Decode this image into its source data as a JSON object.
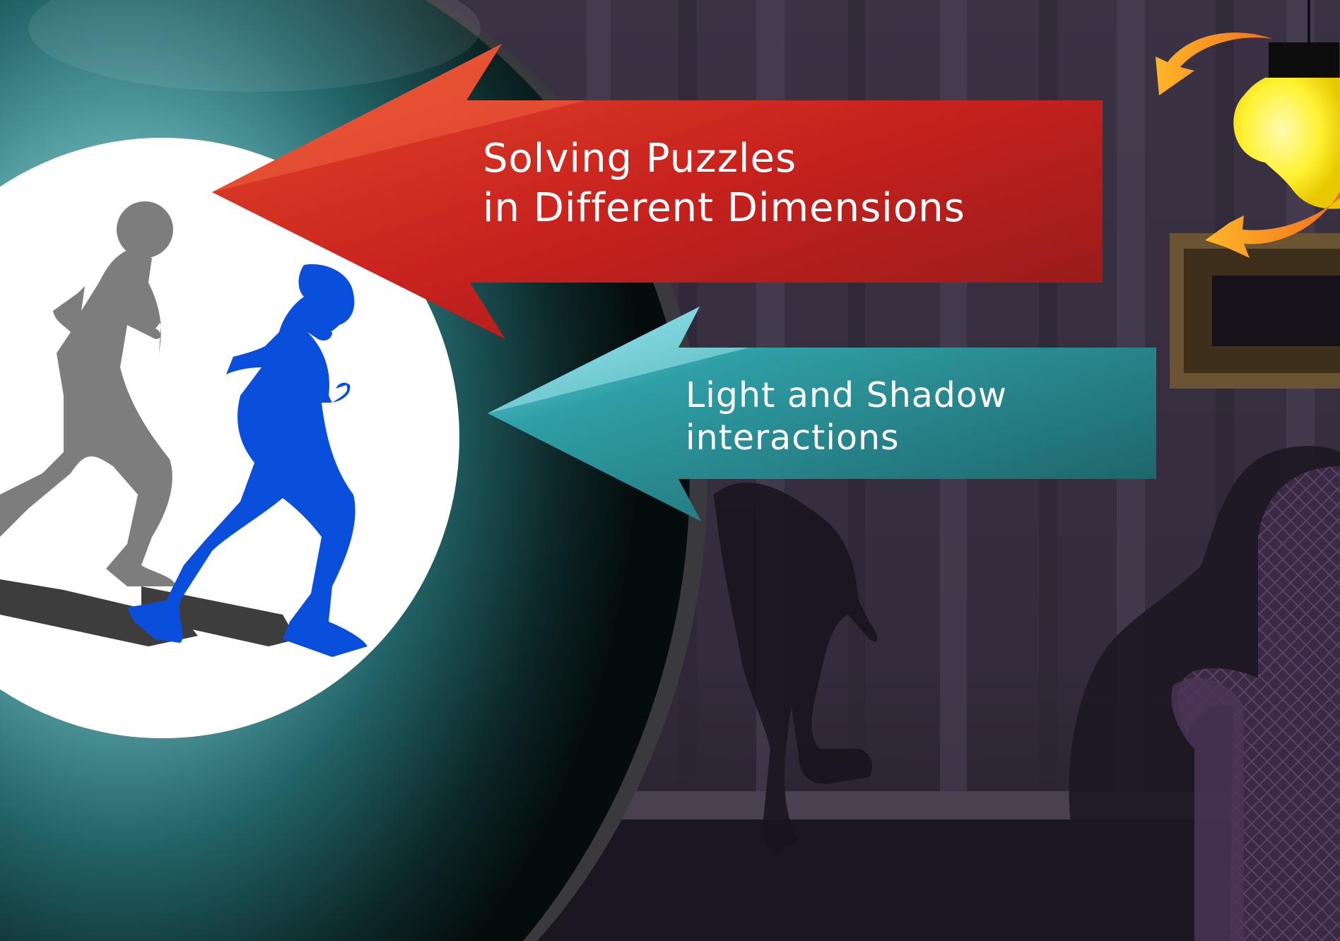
{
  "callouts": {
    "puzzles": {
      "line1": "Solving Puzzles",
      "line2": "in Different Dimensions",
      "color": "#c9241f"
    },
    "light_shadow": {
      "line1": "Light and Shadow",
      "line2": "interactions",
      "color": "#2f9aa0"
    }
  },
  "colors": {
    "wall": "#3a3142",
    "wall_stripe": "#4a4153",
    "floor": "#1b1720",
    "globe_dark": "#0b1a1a",
    "globe_teal": "#2a7c80",
    "spotlight": "#ffffff",
    "runner_front": "#0a4fdc",
    "runner_back": "#7d7d7d",
    "bulb": "#ffee22",
    "rotate_arrows": "#f28a1e"
  },
  "icons": {
    "runner_front": "runner-blue-silhouette",
    "runner_back": "runner-gray-silhouette",
    "bulb": "light-bulb-icon",
    "rotate": "rotate-arrows-icon",
    "armchair": "armchair",
    "picture_frame": "picture-frame"
  }
}
